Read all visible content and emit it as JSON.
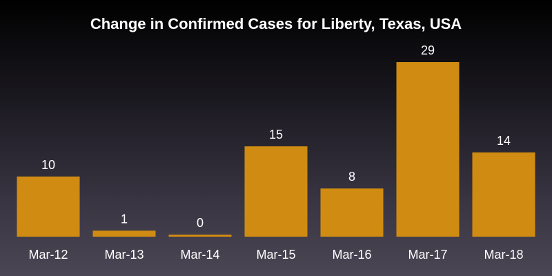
{
  "colors": {
    "bar": "#d08c12",
    "text": "#ffffff"
  },
  "chart_data": {
    "type": "bar",
    "title": "Change in Confirmed Cases for Liberty, Texas, USA",
    "xlabel": "",
    "ylabel": "",
    "categories": [
      "Mar-12",
      "Mar-13",
      "Mar-14",
      "Mar-15",
      "Mar-16",
      "Mar-17",
      "Mar-18"
    ],
    "values": [
      10,
      1,
      0,
      15,
      8,
      29,
      14
    ],
    "data_labels": [
      "10",
      "1",
      "0",
      "15",
      "8",
      "29",
      "14"
    ],
    "ylim": [
      0,
      29
    ],
    "grid": false,
    "legend": "none"
  }
}
